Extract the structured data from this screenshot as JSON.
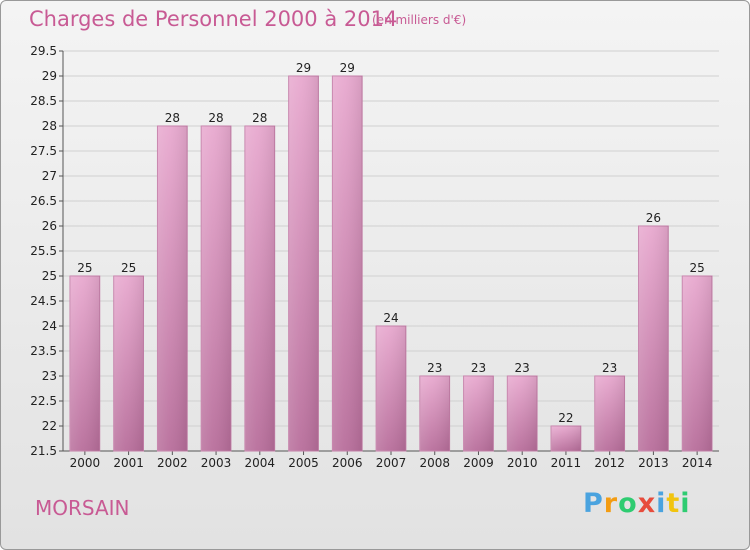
{
  "chart_data": {
    "type": "bar",
    "title": "Charges de Personnel 2000 à 2014",
    "subtitle": "(en milliers d'€)",
    "xlabel": "",
    "ylabel": "",
    "categories": [
      "2000",
      "2001",
      "2002",
      "2003",
      "2004",
      "2005",
      "2006",
      "2007",
      "2008",
      "2009",
      "2010",
      "2011",
      "2012",
      "2013",
      "2014"
    ],
    "values": [
      25,
      25,
      28,
      28,
      28,
      29,
      29,
      24,
      23,
      23,
      23,
      22,
      23,
      26,
      25
    ],
    "data_labels": [
      "25",
      "25",
      "28",
      "28",
      "28",
      "29",
      "29",
      "24",
      "23",
      "23",
      "23",
      "22",
      "23",
      "26",
      "25"
    ],
    "ylim": [
      21.5,
      29.5
    ],
    "yticks": [
      21.5,
      22,
      22.5,
      23,
      23.5,
      24,
      24.5,
      25,
      25.5,
      26,
      26.5,
      27,
      27.5,
      28,
      28.5,
      29,
      29.5
    ],
    "ytick_labels": [
      "21.5",
      "22",
      "22.5",
      "23",
      "23.5",
      "24",
      "24.5",
      "25",
      "25.5",
      "26",
      "26.5",
      "27",
      "27.5",
      "28",
      "28.5",
      "29",
      "29.5"
    ],
    "grid": true,
    "legend": "none",
    "bar_color": "#d98ab8"
  },
  "footer": {
    "commune": "MORSAIN"
  },
  "logo": {
    "letters": [
      "P",
      "r",
      "o",
      "x",
      "i",
      "t",
      "i"
    ],
    "colors": [
      "#4aa3df",
      "#f39c12",
      "#2ecc71",
      "#e74c3c",
      "#4aa3df",
      "#f1c40f",
      "#2ecc71"
    ]
  }
}
